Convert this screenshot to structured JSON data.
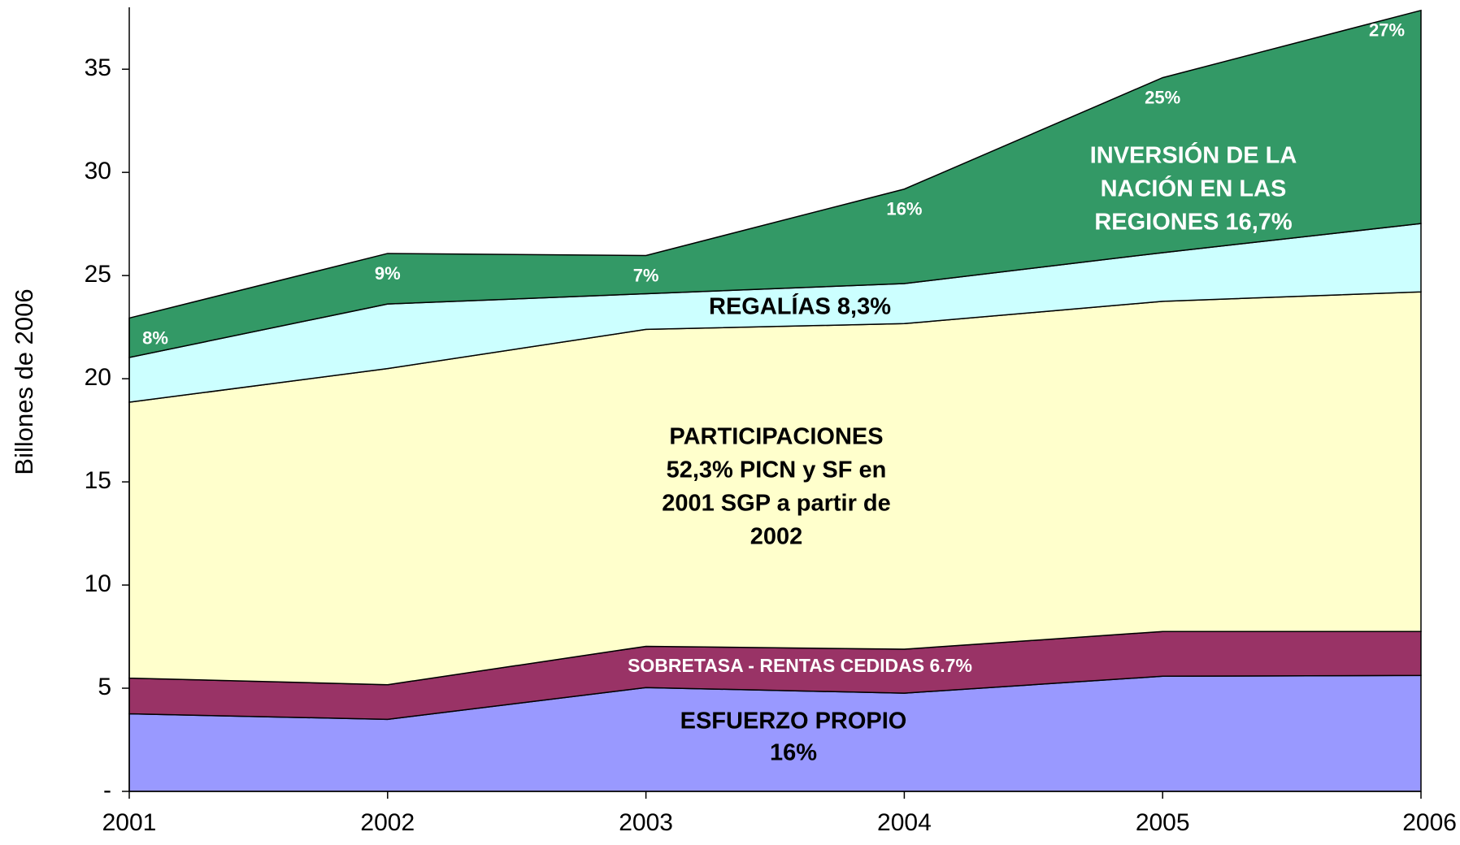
{
  "chart_data": {
    "type": "stacked_area",
    "y_label": "Billones de 2006",
    "categories": [
      "2001",
      "2002",
      "2003",
      "2004",
      "2005",
      "2006"
    ],
    "ylim": [
      0,
      38
    ],
    "yticks": [
      {
        "value": 0,
        "label": "-"
      },
      5,
      10,
      15,
      20,
      25,
      30,
      35
    ],
    "series": [
      {
        "name_lines": [
          "ESFUERZO PROPIO",
          "16%"
        ],
        "color": "#9999ff",
        "values": [
          3.76,
          3.49,
          5.03,
          4.76,
          5.58,
          5.62
        ]
      },
      {
        "name_lines": [
          "SOBRETASA - RENTAS CEDIDAS 6.7%"
        ],
        "color": "#993366",
        "values": [
          1.73,
          1.68,
          2.0,
          2.13,
          2.17,
          2.13
        ]
      },
      {
        "name_lines": [
          "PARTICIPACIONES",
          "52,3% PICN y SF en",
          "2001 SGP a partir de",
          "2002"
        ],
        "color": "#ffffcc",
        "values": [
          13.37,
          15.32,
          15.36,
          15.78,
          16.0,
          16.46
        ]
      },
      {
        "name_lines": [
          "REGALÍAS 8,3%"
        ],
        "color": "#ccffff",
        "values": [
          2.17,
          3.13,
          1.73,
          1.94,
          2.36,
          3.31
        ]
      },
      {
        "name_lines": [
          "INVERSIÓN DE LA",
          "NACIÓN EN LAS",
          "REGIONES 16,7%"
        ],
        "color": "#339966",
        "values": [
          1.91,
          2.45,
          1.85,
          4.58,
          8.48,
          10.33
        ],
        "share_labels": [
          "8%",
          "9%",
          "7%",
          "16%",
          "25%",
          "27%"
        ]
      }
    ]
  }
}
